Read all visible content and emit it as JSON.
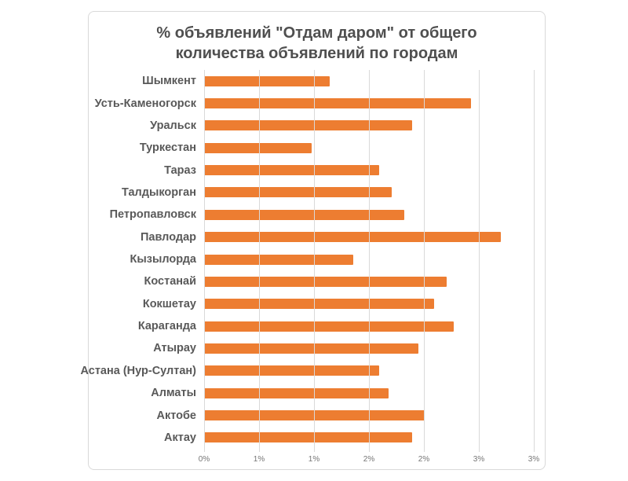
{
  "chart_data": {
    "type": "bar",
    "orientation": "horizontal",
    "title": "% объявлений \"Отдам даром\" от общего количества объявлений по городам",
    "categories": [
      "Шымкент",
      "Усть-Каменогорск",
      "Уральск",
      "Туркестан",
      "Тараз",
      "Талдыкорган",
      "Петропавловск",
      "Павлодар",
      "Кызылорда",
      "Костанай",
      "Кокшетау",
      "Караганда",
      "Атырау",
      "Астана (Нур-Султан)",
      "Алматы",
      "Актобе",
      "Актау"
    ],
    "values": [
      1.14,
      2.43,
      1.89,
      0.98,
      1.59,
      1.71,
      1.82,
      2.7,
      1.36,
      2.21,
      2.09,
      2.27,
      1.95,
      1.59,
      1.68,
      2.01,
      1.89
    ],
    "value_unit": "%",
    "xlabel": "",
    "ylabel": "",
    "xlim": [
      0,
      3
    ],
    "x_tick_values": [
      0,
      0.5,
      1,
      1.5,
      2,
      2.5,
      3
    ],
    "x_tick_labels": [
      "0%",
      "1%",
      "1%",
      "2%",
      "2%",
      "3%",
      "3%"
    ],
    "grid": true,
    "legend": "none",
    "colors": {
      "bar": "#ed7d31",
      "title": "#4f4f4f",
      "category_label": "#595959",
      "tick_label": "#757575",
      "gridline": "#d9d9d9",
      "frame_border": "#d9d9d9",
      "background": "#ffffff"
    }
  }
}
